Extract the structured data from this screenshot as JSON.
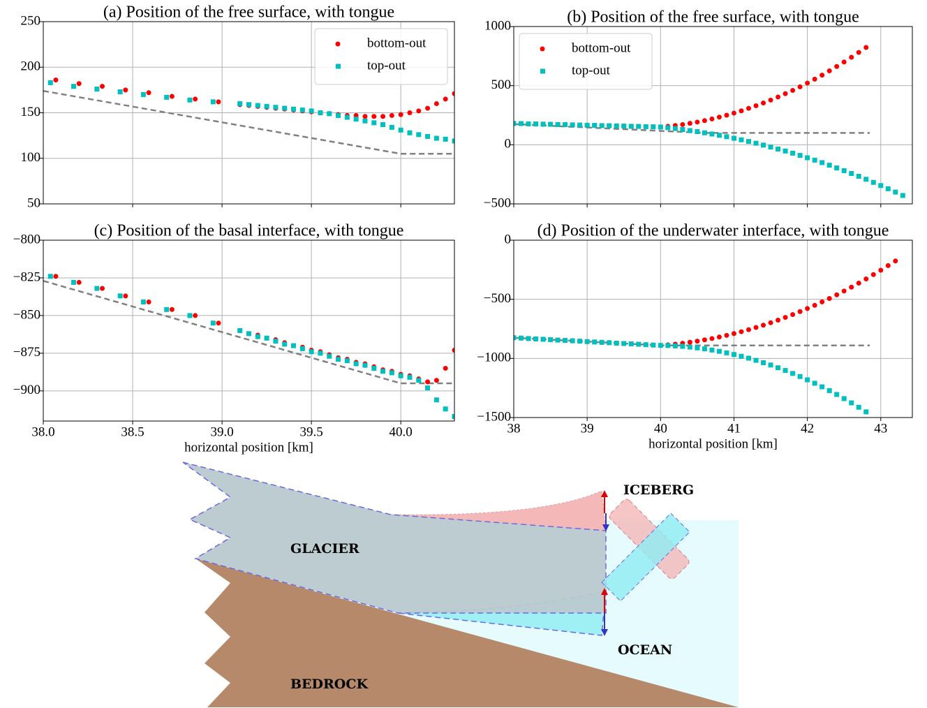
{
  "chart_data": [
    {
      "type": "scatter",
      "title": "(a) Position of the free surface, with tongue",
      "xlim": [
        38,
        40.3
      ],
      "xticks": [
        38.5,
        39,
        39.5,
        40
      ],
      "xtick_labels": false,
      "ylim": [
        50,
        250
      ],
      "yticks": [
        50,
        100,
        150,
        200,
        250
      ],
      "grid": true,
      "legend": "upper right",
      "series": [
        {
          "name": "bottom-out",
          "color": "#ff0000",
          "marker": "circle",
          "x": [
            38.07,
            38.2,
            38.33,
            38.46,
            38.59,
            38.72,
            38.85,
            38.98,
            39.1,
            39.15,
            39.2,
            39.25,
            39.3,
            39.35,
            39.4,
            39.45,
            39.5,
            39.55,
            39.6,
            39.65,
            39.7,
            39.75,
            39.8,
            39.85,
            39.9,
            39.95,
            40.0,
            40.05,
            40.1,
            40.15,
            40.2,
            40.25,
            40.3
          ],
          "values": [
            186,
            182,
            179,
            175,
            172,
            168,
            165,
            162,
            159,
            158,
            157,
            156,
            155,
            154,
            153,
            152,
            151,
            150,
            149,
            148,
            147,
            147,
            146,
            146,
            146,
            147,
            148,
            150,
            152,
            155,
            160,
            165,
            171
          ]
        },
        {
          "name": "top-out",
          "color": "#00bfbf",
          "marker": "square",
          "x": [
            38.04,
            38.17,
            38.3,
            38.43,
            38.56,
            38.69,
            38.82,
            38.95,
            39.1,
            39.15,
            39.2,
            39.25,
            39.3,
            39.35,
            39.4,
            39.45,
            39.5,
            39.55,
            39.6,
            39.65,
            39.7,
            39.75,
            39.8,
            39.85,
            39.9,
            39.95,
            40.0,
            40.05,
            40.1,
            40.15,
            40.2,
            40.25,
            40.3
          ],
          "values": [
            183,
            179,
            176,
            173,
            170,
            167,
            164,
            162,
            160,
            159,
            158,
            157,
            156,
            155,
            154,
            153,
            152,
            150,
            149,
            147,
            145,
            143,
            141,
            139,
            137,
            134,
            131,
            128,
            126,
            124,
            122,
            121,
            119
          ]
        },
        {
          "style": "dashed",
          "color": "#808080",
          "x": [
            38,
            40,
            40.3
          ],
          "values": [
            174,
            105,
            105
          ]
        }
      ]
    },
    {
      "type": "scatter",
      "title": "(b) Position of the free surface, with tongue",
      "xlim": [
        38,
        43.43
      ],
      "xticks": [
        38,
        39,
        40,
        41,
        42,
        43
      ],
      "xtick_labels": false,
      "ylim": [
        -500,
        1000
      ],
      "yticks": [
        {
          "value": -500,
          "label": "−500"
        },
        0,
        500,
        1000
      ],
      "grid": true,
      "legend": "upper left",
      "series": [
        {
          "name": "bottom-out",
          "color": "#ff0000",
          "marker": "circle",
          "x": [
            38.0,
            38.1,
            38.2,
            38.3,
            38.4,
            38.5,
            38.6,
            38.7,
            38.8,
            38.9,
            39.0,
            39.1,
            39.2,
            39.3,
            39.4,
            39.5,
            39.6,
            39.7,
            39.8,
            39.9,
            40.0,
            40.1,
            40.2,
            40.3,
            40.4,
            40.5,
            40.6,
            40.7,
            40.8,
            40.9,
            41.0,
            41.1,
            41.2,
            41.3,
            41.4,
            41.5,
            41.6,
            41.7,
            41.8,
            41.9,
            42.0,
            42.1,
            42.2,
            42.3,
            42.4,
            42.5,
            42.6,
            42.7,
            42.8
          ],
          "values": [
            180,
            179,
            177,
            176,
            174,
            173,
            171,
            170,
            168,
            167,
            165,
            164,
            162,
            161,
            159,
            158,
            156,
            155,
            153,
            152,
            150,
            156,
            163,
            171,
            181,
            192,
            204,
            218,
            234,
            250,
            268,
            287,
            308,
            330,
            353,
            378,
            404,
            432,
            460,
            490,
            522,
            555,
            589,
            625,
            662,
            700,
            740,
            781,
            823
          ]
        },
        {
          "name": "top-out",
          "color": "#00bfbf",
          "marker": "square",
          "x": [
            38.0,
            38.1,
            38.2,
            38.3,
            38.4,
            38.5,
            38.6,
            38.7,
            38.8,
            38.9,
            39.0,
            39.1,
            39.2,
            39.3,
            39.4,
            39.5,
            39.6,
            39.7,
            39.8,
            39.9,
            40.0,
            40.1,
            40.2,
            40.3,
            40.4,
            40.5,
            40.6,
            40.7,
            40.8,
            40.9,
            41.0,
            41.1,
            41.2,
            41.3,
            41.4,
            41.5,
            41.6,
            41.7,
            41.8,
            41.9,
            42.0,
            42.1,
            42.2,
            42.3,
            42.4,
            42.5,
            42.6,
            42.7,
            42.8,
            42.9,
            43.0,
            43.1,
            43.2,
            43.3
          ],
          "values": [
            180,
            179,
            177,
            176,
            174,
            173,
            171,
            170,
            168,
            167,
            165,
            164,
            162,
            161,
            159,
            158,
            156,
            155,
            153,
            152,
            150,
            144,
            137,
            129,
            120,
            111,
            101,
            91,
            80,
            68,
            55,
            42,
            28,
            13,
            -3,
            -19,
            -36,
            -53,
            -71,
            -90,
            -110,
            -130,
            -151,
            -173,
            -196,
            -219,
            -243,
            -267,
            -292,
            -318,
            -345,
            -372,
            -400,
            -429
          ]
        },
        {
          "style": "dashed",
          "color": "#808080",
          "x": [
            38,
            40.6,
            42.85
          ],
          "values": [
            175,
            100,
            100
          ]
        }
      ]
    },
    {
      "type": "scatter",
      "title": "(c) Position of the basal interface, with tongue",
      "xlabel": "horizontal position [km]",
      "xlim": [
        38,
        40.3
      ],
      "xticks": [
        {
          "value": 38,
          "label": "38.0"
        },
        38.5,
        {
          "value": 39,
          "label": "39.0"
        },
        39.5,
        {
          "value": 40,
          "label": "40.0"
        }
      ],
      "ylim": [
        -920,
        -800
      ],
      "yticks": [
        {
          "value": -900,
          "label": "−900"
        },
        {
          "value": -875,
          "label": "−875"
        },
        {
          "value": -850,
          "label": "−850"
        },
        {
          "value": -825,
          "label": "−825"
        },
        {
          "value": -800,
          "label": "−800"
        }
      ],
      "grid": true,
      "series": [
        {
          "name": "bottom-out",
          "color": "#ff0000",
          "marker": "circle",
          "x": [
            38.07,
            38.2,
            38.33,
            38.46,
            38.59,
            38.72,
            38.85,
            38.98,
            39.1,
            39.15,
            39.2,
            39.25,
            39.3,
            39.35,
            39.4,
            39.45,
            39.5,
            39.55,
            39.6,
            39.65,
            39.7,
            39.75,
            39.8,
            39.85,
            39.9,
            39.95,
            40.0,
            40.05,
            40.1,
            40.15,
            40.2,
            40.25,
            40.3
          ],
          "values": [
            -824,
            -828,
            -832,
            -837,
            -841,
            -846,
            -850,
            -855,
            -860,
            -862,
            -863,
            -865,
            -866,
            -868,
            -870,
            -871,
            -873,
            -874,
            -876,
            -878,
            -879,
            -881,
            -882,
            -884,
            -886,
            -887,
            -889,
            -890,
            -892,
            -894,
            -893,
            -885,
            -873
          ]
        },
        {
          "name": "top-out",
          "color": "#00bfbf",
          "marker": "square",
          "x": [
            38.04,
            38.17,
            38.3,
            38.43,
            38.56,
            38.69,
            38.82,
            38.95,
            39.1,
            39.15,
            39.2,
            39.25,
            39.3,
            39.35,
            39.4,
            39.45,
            39.5,
            39.55,
            39.6,
            39.65,
            39.7,
            39.75,
            39.8,
            39.85,
            39.9,
            39.95,
            40.0,
            40.05,
            40.1,
            40.15,
            40.2,
            40.25,
            40.3
          ],
          "values": [
            -824,
            -828,
            -832,
            -837,
            -841,
            -846,
            -850,
            -855,
            -860,
            -862,
            -864,
            -865,
            -867,
            -869,
            -870,
            -872,
            -874,
            -875,
            -877,
            -879,
            -880,
            -882,
            -883,
            -885,
            -887,
            -888,
            -890,
            -891,
            -893,
            -898,
            -906,
            -912,
            -917
          ]
        },
        {
          "style": "dashed",
          "color": "#808080",
          "x": [
            38,
            40,
            40.3
          ],
          "values": [
            -827,
            -895,
            -895
          ]
        }
      ]
    },
    {
      "type": "scatter",
      "title": "(d) Position of the underwater interface, with tongue",
      "xlabel": "horizontal position [km]",
      "xlim": [
        38,
        43.43
      ],
      "xticks": [
        38,
        39,
        40,
        41,
        42,
        43
      ],
      "ylim": [
        -1500,
        0
      ],
      "yticks": [
        {
          "value": -1500,
          "label": "−1500"
        },
        {
          "value": -1000,
          "label": "−1000"
        },
        {
          "value": -500,
          "label": "−500"
        },
        0
      ],
      "grid": true,
      "series": [
        {
          "name": "bottom-out",
          "color": "#ff0000",
          "marker": "circle",
          "x": [
            38.0,
            38.1,
            38.2,
            38.3,
            38.4,
            38.5,
            38.6,
            38.7,
            38.8,
            38.9,
            39.0,
            39.1,
            39.2,
            39.3,
            39.4,
            39.5,
            39.6,
            39.7,
            39.8,
            39.9,
            40.0,
            40.1,
            40.2,
            40.3,
            40.4,
            40.5,
            40.6,
            40.7,
            40.8,
            40.9,
            41.0,
            41.1,
            41.2,
            41.3,
            41.4,
            41.5,
            41.6,
            41.7,
            41.8,
            41.9,
            42.0,
            42.1,
            42.2,
            42.3,
            42.4,
            42.5,
            42.6,
            42.7,
            42.8,
            42.9,
            43.0,
            43.1,
            43.2
          ],
          "values": [
            -825,
            -828,
            -832,
            -835,
            -838,
            -841,
            -845,
            -848,
            -851,
            -854,
            -858,
            -861,
            -864,
            -867,
            -871,
            -874,
            -877,
            -880,
            -884,
            -887,
            -890,
            -885,
            -879,
            -872,
            -863,
            -854,
            -843,
            -832,
            -819,
            -805,
            -790,
            -774,
            -757,
            -738,
            -719,
            -698,
            -676,
            -653,
            -629,
            -604,
            -578,
            -551,
            -522,
            -493,
            -462,
            -430,
            -397,
            -363,
            -328,
            -291,
            -254,
            -215,
            -176
          ]
        },
        {
          "name": "top-out",
          "color": "#00bfbf",
          "marker": "square",
          "x": [
            38.0,
            38.1,
            38.2,
            38.3,
            38.4,
            38.5,
            38.6,
            38.7,
            38.8,
            38.9,
            39.0,
            39.1,
            39.2,
            39.3,
            39.4,
            39.5,
            39.6,
            39.7,
            39.8,
            39.9,
            40.0,
            40.1,
            40.2,
            40.3,
            40.4,
            40.5,
            40.6,
            40.7,
            40.8,
            40.9,
            41.0,
            41.1,
            41.2,
            41.3,
            41.4,
            41.5,
            41.6,
            41.7,
            41.8,
            41.9,
            42.0,
            42.1,
            42.2,
            42.3,
            42.4,
            42.5,
            42.6,
            42.7,
            42.8
          ],
          "values": [
            -825,
            -828,
            -832,
            -835,
            -838,
            -841,
            -845,
            -848,
            -851,
            -854,
            -858,
            -861,
            -864,
            -867,
            -871,
            -874,
            -877,
            -880,
            -884,
            -887,
            -890,
            -891,
            -894,
            -898,
            -904,
            -911,
            -919,
            -929,
            -940,
            -953,
            -967,
            -982,
            -998,
            -1016,
            -1036,
            -1056,
            -1079,
            -1102,
            -1127,
            -1153,
            -1181,
            -1210,
            -1240,
            -1272,
            -1305,
            -1340,
            -1376,
            -1413,
            -1452
          ]
        },
        {
          "style": "dashed",
          "color": "#808080",
          "x": [
            38,
            40,
            42.85
          ],
          "values": [
            -825,
            -890,
            -890
          ]
        }
      ]
    }
  ],
  "diagram": {
    "labels": {
      "glacier": "GLACIER",
      "iceberg": "ICEBERG",
      "ocean": "OCEAN",
      "bedrock": "BEDROCK"
    }
  }
}
